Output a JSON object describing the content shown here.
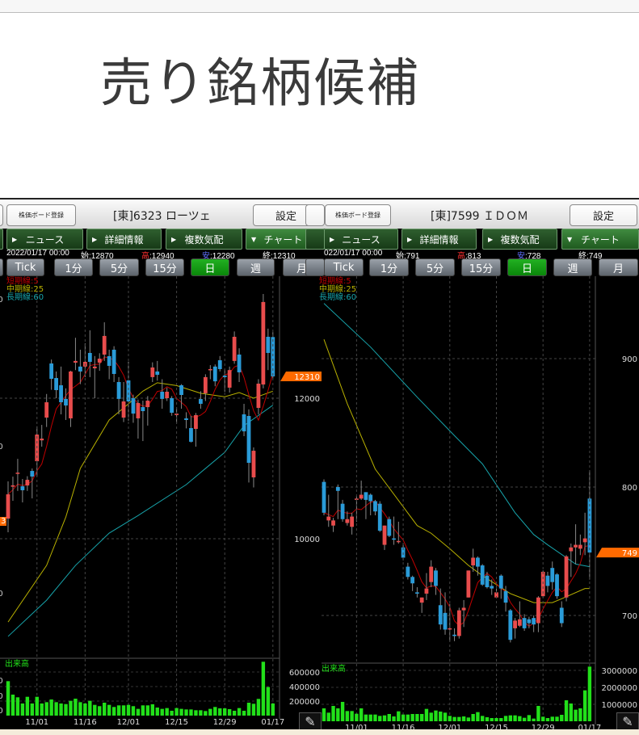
{
  "page_title": "売り銘柄候補",
  "colors": {
    "up": "#e84c4c",
    "down": "#2a9bd8",
    "ma_short": "#c00000",
    "ma_mid": "#b8b000",
    "ma_long": "#17a3aa",
    "volume": "#22e01a",
    "marker": "#ff6a00",
    "active_period": "#0a9a0a"
  },
  "common": {
    "board_button": "株価ボード登録",
    "settings_button": "設定",
    "nav": [
      "ニュース",
      "詳細情報",
      "複数気配",
      "チャート"
    ],
    "periods": [
      "Tick",
      "1分",
      "5分",
      "15分",
      "日",
      "週",
      "月"
    ],
    "active_period": "日",
    "legend": [
      "短期線:5",
      "中期線:25",
      "長期線:60"
    ],
    "volume_label": "出来高",
    "ohlc_labels": {
      "open": "始",
      "high": "高",
      "low": "安",
      "close": "終"
    }
  },
  "left_cut_labels": {
    "price": [
      "00",
      "00",
      "00"
    ],
    "marker": "3",
    "volume": [
      "00",
      "00",
      "00"
    ]
  },
  "charts": [
    {
      "symbol": "[東]6323 ローツェ",
      "date": "2022/01/17 00:00",
      "open": "12870",
      "high": "12940",
      "low": "12280",
      "close": "12310",
      "current_marker": "12310",
      "chart_data": {
        "type": "candlestick",
        "price_ticks": [
          10000,
          12000
        ],
        "ylim": [
          8300,
          13720
        ],
        "volume_ticks": [
          200000,
          400000,
          600000
        ],
        "date_ticks": [
          {
            "label": "11/01",
            "index": 6
          },
          {
            "label": "11/16",
            "index": 16
          },
          {
            "label": "12/01",
            "index": 25
          },
          {
            "label": "12/15",
            "index": 35
          },
          {
            "label": "12/29",
            "index": 45
          },
          {
            "label": "01/17",
            "index": 55
          }
        ],
        "ohlc": [
          [
            10287,
            10816,
            10092,
            10632
          ],
          [
            10740,
            10884,
            10540,
            10760
          ],
          [
            10930,
            11137,
            10680,
            10940
          ],
          [
            10746,
            10850,
            10517,
            10690
          ],
          [
            10758,
            10890,
            10680,
            10838
          ],
          [
            10965,
            11000,
            10574,
            10885
          ],
          [
            11103,
            11600,
            10890,
            11482
          ],
          [
            11400,
            11620,
            11310,
            11425
          ],
          [
            11724,
            12060,
            11590,
            11942
          ],
          [
            12494,
            12550,
            12120,
            12276
          ],
          [
            12287,
            12380,
            12000,
            12115
          ],
          [
            12184,
            12450,
            11770,
            11942
          ],
          [
            11989,
            12140,
            11690,
            11896
          ],
          [
            11713,
            12390,
            11590,
            12380
          ],
          [
            12506,
            12860,
            12400,
            12530
          ],
          [
            12450,
            12690,
            12200,
            12380
          ],
          [
            12450,
            12780,
            12300,
            12517
          ],
          [
            12644,
            12966,
            12300,
            12517
          ],
          [
            12425,
            12600,
            12000,
            12450
          ],
          [
            12506,
            12640,
            12390,
            12563
          ],
          [
            12620,
            13080,
            12530,
            12886
          ],
          [
            12598,
            12690,
            12270,
            12460
          ],
          [
            12690,
            12740,
            12230,
            12345
          ],
          [
            12230,
            12300,
            11770,
            11990
          ],
          [
            11724,
            12230,
            11660,
            11954
          ],
          [
            12253,
            12520,
            11680,
            11954
          ],
          [
            12000,
            12050,
            11650,
            11781
          ],
          [
            11713,
            11980,
            11425,
            11931
          ],
          [
            11873,
            11965,
            11390,
            11816
          ],
          [
            11873,
            12030,
            11610,
            11965
          ],
          [
            12300,
            12510,
            12230,
            12437
          ],
          [
            12380,
            12530,
            12250,
            12333
          ],
          [
            12092,
            12270,
            11850,
            11990
          ],
          [
            12000,
            12150,
            11960,
            12092
          ],
          [
            12000,
            12030,
            11750,
            11793
          ],
          [
            11760,
            11870,
            11640,
            11780
          ],
          [
            12184,
            12200,
            11850,
            12046
          ],
          [
            11713,
            11800,
            11570,
            11690
          ],
          [
            11575,
            11750,
            11370,
            11380
          ],
          [
            11563,
            11790,
            11310,
            11759
          ],
          [
            11988,
            12100,
            11850,
            11920
          ],
          [
            12070,
            12340,
            11960,
            12300
          ],
          [
            12400,
            12470,
            12270,
            12414
          ],
          [
            12450,
            12480,
            12170,
            12240
          ],
          [
            12540,
            12600,
            12380,
            12414
          ],
          [
            12322,
            12410,
            12090,
            12300
          ],
          [
            12150,
            12450,
            12080,
            12400
          ],
          [
            12530,
            12950,
            12490,
            12874
          ],
          [
            12621,
            12710,
            12230,
            12368
          ],
          [
            11770,
            11920,
            11460,
            11528
          ],
          [
            11747,
            11840,
            10800,
            11080
          ],
          [
            10873,
            11300,
            10730,
            11252
          ],
          [
            11862,
            12270,
            11770,
            12207
          ],
          [
            12195,
            13483,
            12140,
            13369
          ],
          [
            12874,
            12990,
            12400,
            12644
          ],
          [
            12870,
            12940,
            12280,
            12310
          ]
        ],
        "volume": [
          474000,
          289000,
          252000,
          167000,
          259000,
          167000,
          259000,
          167000,
          185000,
          222000,
          185000,
          167000,
          159000,
          204000,
          233000,
          185000,
          167000,
          204000,
          148000,
          130000,
          178000,
          148000,
          119000,
          141000,
          141000,
          148000,
          130000,
          93000,
          141000,
          141000,
          156000,
          111000,
          93000,
          104000,
          67000,
          104000,
          93000,
          85000,
          85000,
          74000,
          74000,
          63000,
          93000,
          119000,
          100000,
          100000,
          89000,
          67000,
          104000,
          67000,
          178000,
          163000,
          230000,
          741000,
          393000,
          167000
        ],
        "ma25": [
          [
            0,
            8815
          ],
          [
            8,
            9620
          ],
          [
            12,
            10310
          ],
          [
            15,
            11000
          ],
          [
            21,
            11690
          ],
          [
            25,
            11920
          ],
          [
            28,
            12100
          ],
          [
            31,
            12220
          ],
          [
            35,
            12180
          ],
          [
            40,
            12070
          ],
          [
            45,
            12020
          ],
          [
            48,
            12080
          ],
          [
            51,
            12000
          ],
          [
            55,
            12100
          ]
        ],
        "ma60": [
          [
            0,
            8610
          ],
          [
            8,
            9125
          ],
          [
            14,
            9620
          ],
          [
            21,
            10080
          ],
          [
            27,
            10330
          ],
          [
            37,
            10770
          ],
          [
            45,
            11230
          ],
          [
            49,
            11610
          ],
          [
            55,
            11900
          ]
        ]
      }
    },
    {
      "symbol": "[東]7599 ＩＤＯＭ",
      "date": "022/01/17 00:00",
      "open": "791",
      "high": "813",
      "low": "728",
      "close": "749",
      "current_marker": "749",
      "chart_data": {
        "type": "candlestick",
        "price_ticks": [
          700,
          800,
          900
        ],
        "ylim": [
          667,
          964
        ],
        "volume_ticks": [
          1000000,
          2000000,
          3000000
        ],
        "date_ticks": [
          {
            "label": "11/01",
            "index": 7
          },
          {
            "label": "11/16",
            "index": 17
          },
          {
            "label": "12/01",
            "index": 27
          },
          {
            "label": "12/15",
            "index": 37
          },
          {
            "label": "12/29",
            "index": 47
          },
          {
            "label": "01/17",
            "index": 57
          }
        ],
        "ohlc": [
          [
            804,
            806,
            778,
            780
          ],
          [
            774,
            794,
            769,
            777
          ],
          [
            770,
            776,
            765,
            774
          ],
          [
            800,
            802,
            775,
            797
          ],
          [
            787,
            790,
            773,
            775
          ],
          [
            772,
            781,
            770,
            775
          ],
          [
            769,
            780,
            763,
            777
          ],
          [
            790,
            793,
            773,
            791
          ],
          [
            791,
            805,
            790,
            794
          ],
          [
            796,
            796,
            775,
            790
          ],
          [
            794,
            795,
            778,
            789
          ],
          [
            789,
            790,
            778,
            781
          ],
          [
            787,
            789,
            765,
            766
          ],
          [
            755,
            770,
            751,
            770
          ],
          [
            775,
            777,
            761,
            762
          ],
          [
            760,
            777,
            755,
            759
          ],
          [
            758,
            773,
            756,
            758
          ],
          [
            753,
            756,
            743,
            745
          ],
          [
            738,
            741,
            728,
            730
          ],
          [
            730,
            731,
            719,
            725
          ],
          [
            718,
            722,
            714,
            717
          ],
          [
            710,
            714,
            702,
            714
          ],
          [
            717,
            733,
            712,
            721
          ],
          [
            726,
            743,
            722,
            738
          ],
          [
            735,
            737,
            716,
            723
          ],
          [
            708,
            721,
            689,
            693
          ],
          [
            702,
            718,
            685,
            689
          ],
          [
            690,
            709,
            680,
            690
          ],
          [
            685,
            690,
            680,
            684
          ],
          [
            684,
            706,
            682,
            704
          ],
          [
            704,
            712,
            691,
            706
          ],
          [
            714,
            735,
            714,
            735
          ],
          [
            739,
            752,
            734,
            745
          ],
          [
            745,
            746,
            731,
            738
          ],
          [
            739,
            740,
            723,
            724
          ],
          [
            731,
            734,
            721,
            722
          ],
          [
            723,
            728,
            716,
            721
          ],
          [
            714,
            723,
            714,
            718
          ],
          [
            731,
            732,
            713,
            721
          ],
          [
            719,
            723,
            703,
            710
          ],
          [
            704,
            705,
            679,
            681
          ],
          [
            690,
            698,
            682,
            696
          ],
          [
            692,
            711,
            691,
            697
          ],
          [
            698,
            701,
            688,
            690
          ],
          [
            697,
            699,
            690,
            694
          ],
          [
            698,
            700,
            687,
            693
          ],
          [
            694,
            715,
            687,
            714
          ],
          [
            715,
            735,
            714,
            734
          ],
          [
            731,
            734,
            718,
            723
          ],
          [
            737,
            742,
            720,
            726
          ],
          [
            732,
            733,
            713,
            715
          ],
          [
            706,
            711,
            691,
            694
          ],
          [
            714,
            747,
            711,
            746
          ],
          [
            750,
            756,
            730,
            753
          ],
          [
            753,
            771,
            740,
            755
          ],
          [
            752,
            763,
            747,
            755
          ],
          [
            757,
            780,
            747,
            760
          ],
          [
            791,
            813,
            728,
            749
          ]
        ],
        "volume": [
          762000,
          508000,
          905000,
          762000,
          1143000,
          603000,
          603000,
          444000,
          762000,
          397000,
          397000,
          397000,
          317000,
          349000,
          429000,
          286000,
          587000,
          397000,
          397000,
          429000,
          429000,
          429000,
          730000,
          508000,
          635000,
          571000,
          508000,
          317000,
          254000,
          254000,
          286000,
          222000,
          429000,
          540000,
          317000,
          238000,
          190000,
          190000,
          190000,
          317000,
          349000,
          349000,
          302000,
          206000,
          365000,
          159000,
          905000,
          270000,
          190000,
          270000,
          270000,
          381000,
          1238000,
          1048000,
          683000,
          762000,
          1825000,
          3222000
        ],
        "ma25": [
          [
            0,
            915
          ],
          [
            5,
            865
          ],
          [
            11,
            814
          ],
          [
            20,
            770
          ],
          [
            23,
            764
          ],
          [
            27,
            752
          ],
          [
            31,
            739
          ],
          [
            34,
            731
          ],
          [
            40,
            717
          ],
          [
            45,
            710
          ],
          [
            49,
            710
          ],
          [
            51,
            713
          ],
          [
            56,
            721
          ],
          [
            57,
            721
          ]
        ],
        "ma60": [
          [
            0,
            943
          ],
          [
            10,
            909
          ],
          [
            20,
            870
          ],
          [
            28,
            840
          ],
          [
            34,
            818
          ],
          [
            41,
            780
          ],
          [
            45,
            763
          ],
          [
            48,
            755
          ],
          [
            54,
            740
          ],
          [
            57,
            738
          ]
        ]
      }
    }
  ]
}
